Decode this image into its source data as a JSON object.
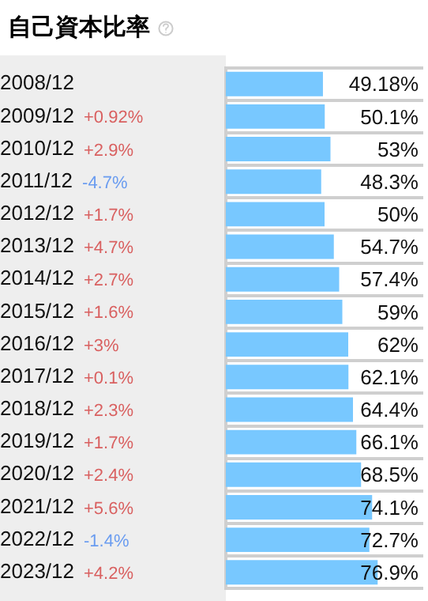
{
  "chart_data": {
    "type": "bar",
    "orientation": "horizontal",
    "title": "自己資本比率",
    "categories": [
      "2008/12",
      "2009/12",
      "2010/12",
      "2011/12",
      "2012/12",
      "2013/12",
      "2014/12",
      "2015/12",
      "2016/12",
      "2017/12",
      "2018/12",
      "2019/12",
      "2020/12",
      "2021/12",
      "2022/12",
      "2023/12"
    ],
    "values": [
      49.18,
      50.1,
      53,
      48.3,
      50,
      54.7,
      57.4,
      59,
      62,
      62.1,
      64.4,
      66.1,
      68.5,
      74.1,
      72.7,
      76.9
    ],
    "value_labels": [
      "49.18%",
      "50.1%",
      "53%",
      "48.3%",
      "50%",
      "54.7%",
      "57.4%",
      "59%",
      "62%",
      "62.1%",
      "64.4%",
      "66.1%",
      "68.5%",
      "74.1%",
      "72.7%",
      "76.9%"
    ],
    "color": "#78c8ff",
    "xlim": [
      0,
      100
    ],
    "grid": "y",
    "tick_labels": "y",
    "legend": false,
    "annotations": [
      "+0.92%",
      "+2.9%",
      "-4.7%",
      "+1.7%",
      "+4.7%",
      "+2.7%",
      "+1.6%",
      "+3%",
      "+0.1%",
      "+2.3%",
      "+1.7%",
      "+2.4%",
      "+5.6%",
      "-1.4%",
      "+4.2%"
    ]
  }
}
